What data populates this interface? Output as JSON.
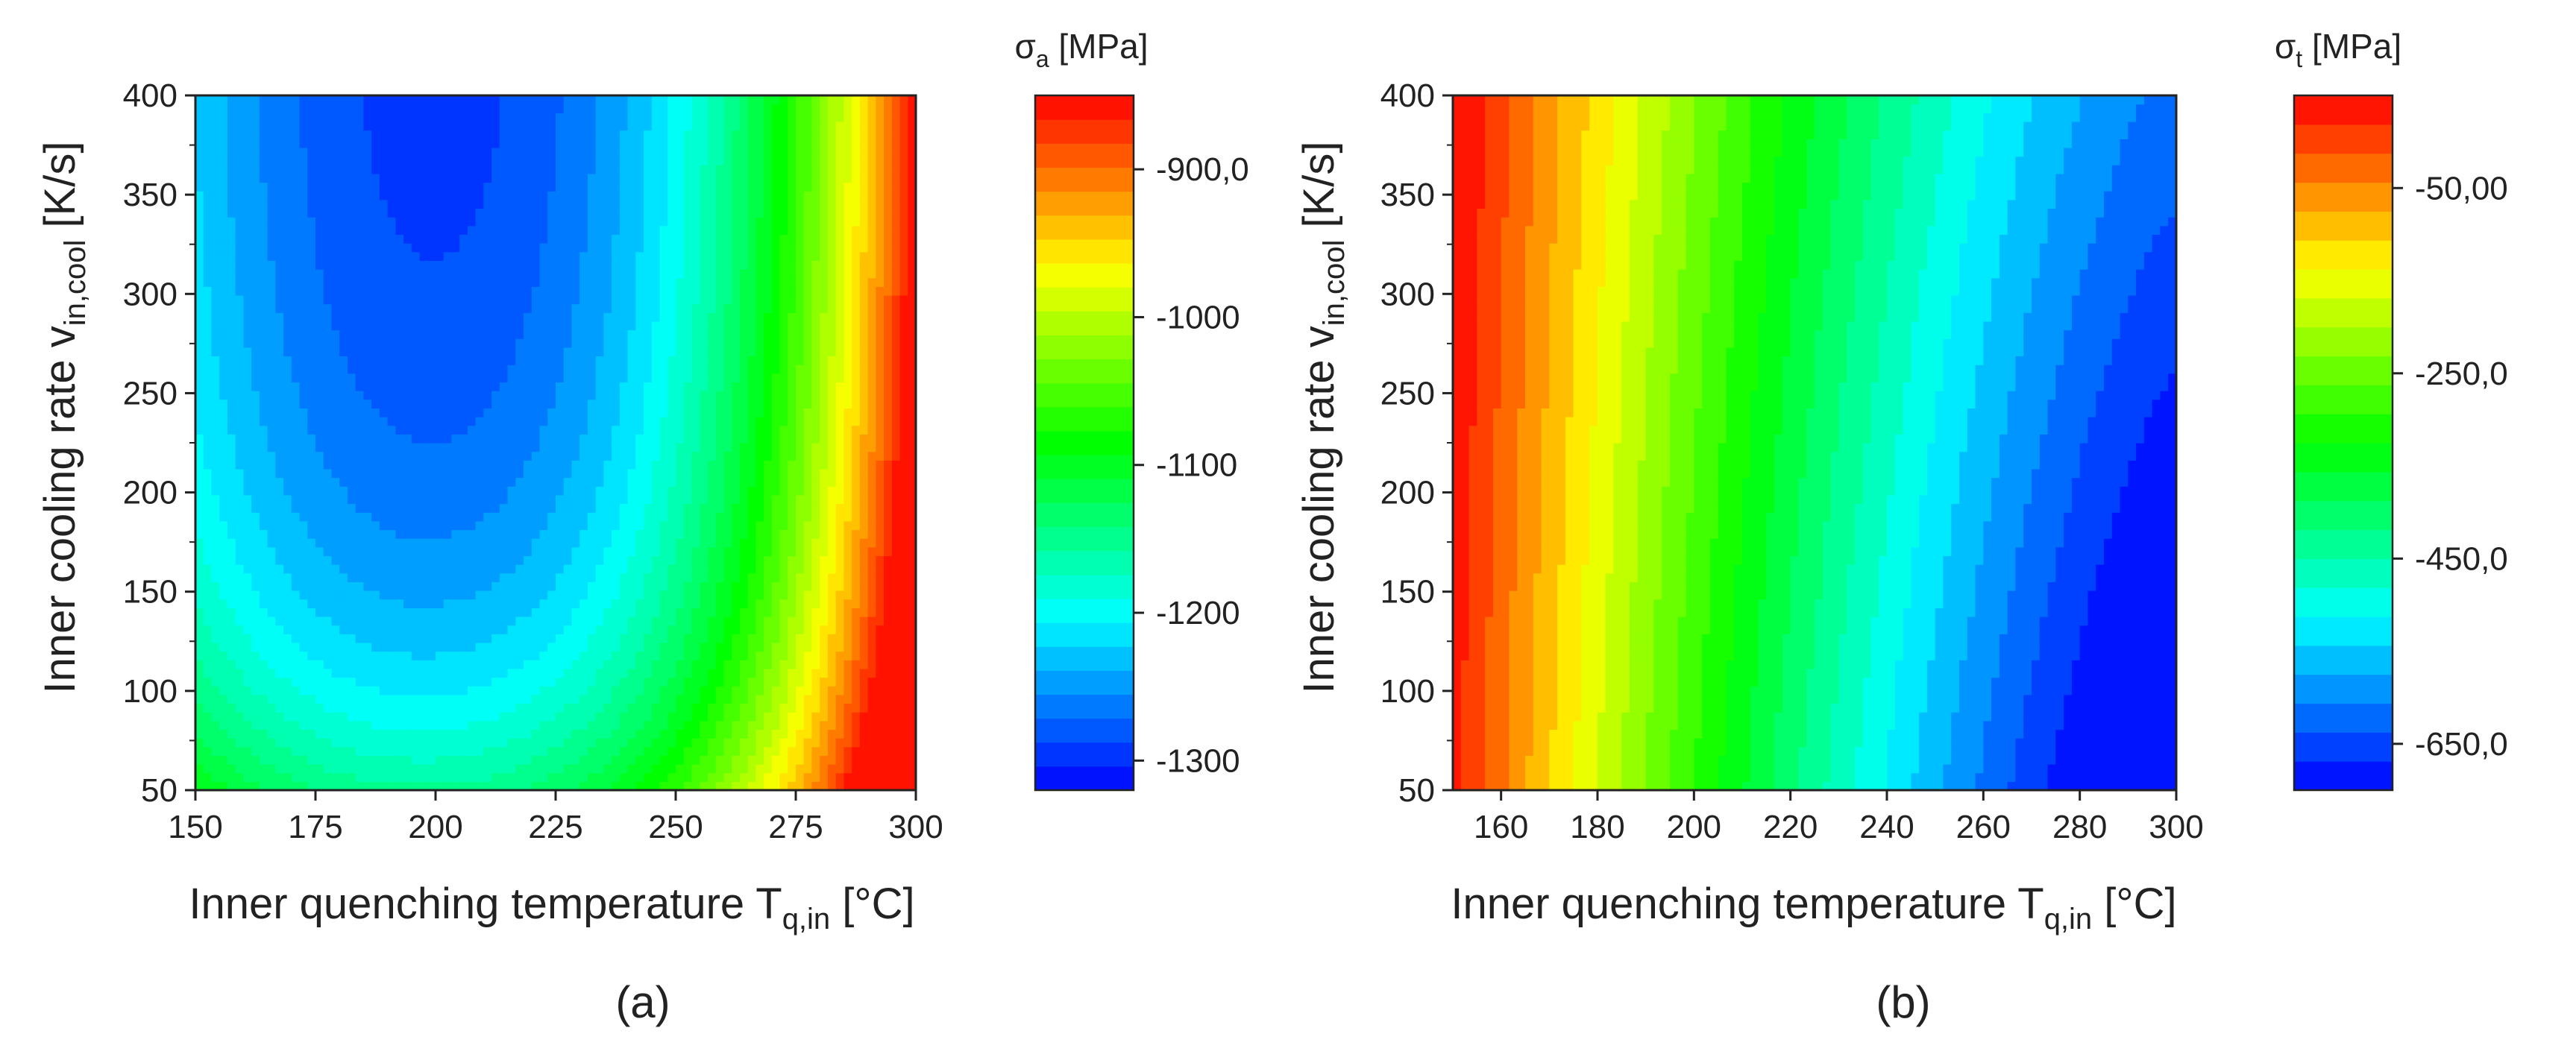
{
  "chart_data": [
    {
      "panel": "a",
      "type": "heatmap",
      "subtype": "contour",
      "caption": "(a)",
      "xlabel": {
        "main": "Inner quenching temperature T",
        "sub": "q,in",
        "unit": " [°C]"
      },
      "ylabel": {
        "main": "Inner cooling rate v",
        "sub": "in,cool",
        "unit": " [K/s]"
      },
      "xlim": [
        150,
        300
      ],
      "ylim": [
        50,
        400
      ],
      "xticks": [
        150,
        175,
        200,
        225,
        250,
        275,
        300
      ],
      "yticks": [
        50,
        100,
        150,
        200,
        250,
        300,
        350,
        400
      ],
      "colorbar": {
        "label_symbol": "σ",
        "label_sub": "a",
        "label_unit": " [MPa]",
        "range": [
          -1320,
          -850
        ],
        "levels": 29,
        "tick_values": [
          -900,
          -1000,
          -1100,
          -1200,
          -1300
        ],
        "tick_labels": [
          "-900,0",
          "-1000",
          "-1100",
          "-1200",
          "-1300"
        ]
      },
      "field_description": "U-shaped valley: minimum (~-1310 MPa) near T=200 °C at high cooling rate, maximum (~-860 MPa) at T=300 °C, v=50 K/s",
      "minimum_at": {
        "T": 200,
        "v": 350,
        "value": -1310
      },
      "maximum_at": {
        "T": 300,
        "v": 50,
        "value": -860
      }
    },
    {
      "panel": "b",
      "type": "heatmap",
      "subtype": "contour",
      "caption": "(b)",
      "xlabel": {
        "main": "Inner quenching temperature T",
        "sub": "q,in",
        "unit": " [°C]"
      },
      "ylabel": {
        "main": "Inner cooling rate v",
        "sub": "in,cool",
        "unit": " [K/s]"
      },
      "xlim": [
        150,
        300
      ],
      "ylim": [
        50,
        400
      ],
      "xticks": [
        160,
        180,
        200,
        220,
        240,
        260,
        280,
        300
      ],
      "yticks": [
        50,
        100,
        150,
        200,
        250,
        300,
        350,
        400
      ],
      "colorbar": {
        "label_symbol": "σ",
        "label_sub": "t",
        "label_unit": " [MPa]",
        "range": [
          -700,
          50
        ],
        "levels": 24,
        "tick_values": [
          -50,
          -250,
          -450,
          -650
        ],
        "tick_labels": [
          "-50,00",
          "-250,0",
          "-450,0",
          "-650,0"
        ]
      },
      "field_description": "Mostly vertical bands: maximum (~+30 MPa) at T=150 °C, high v; minimum (~-690 MPa) at T=300 °C",
      "maximum_at": {
        "T": 150,
        "v": 400,
        "value": 30
      },
      "minimum_at": {
        "T": 300,
        "v": 50,
        "value": -690
      }
    }
  ]
}
